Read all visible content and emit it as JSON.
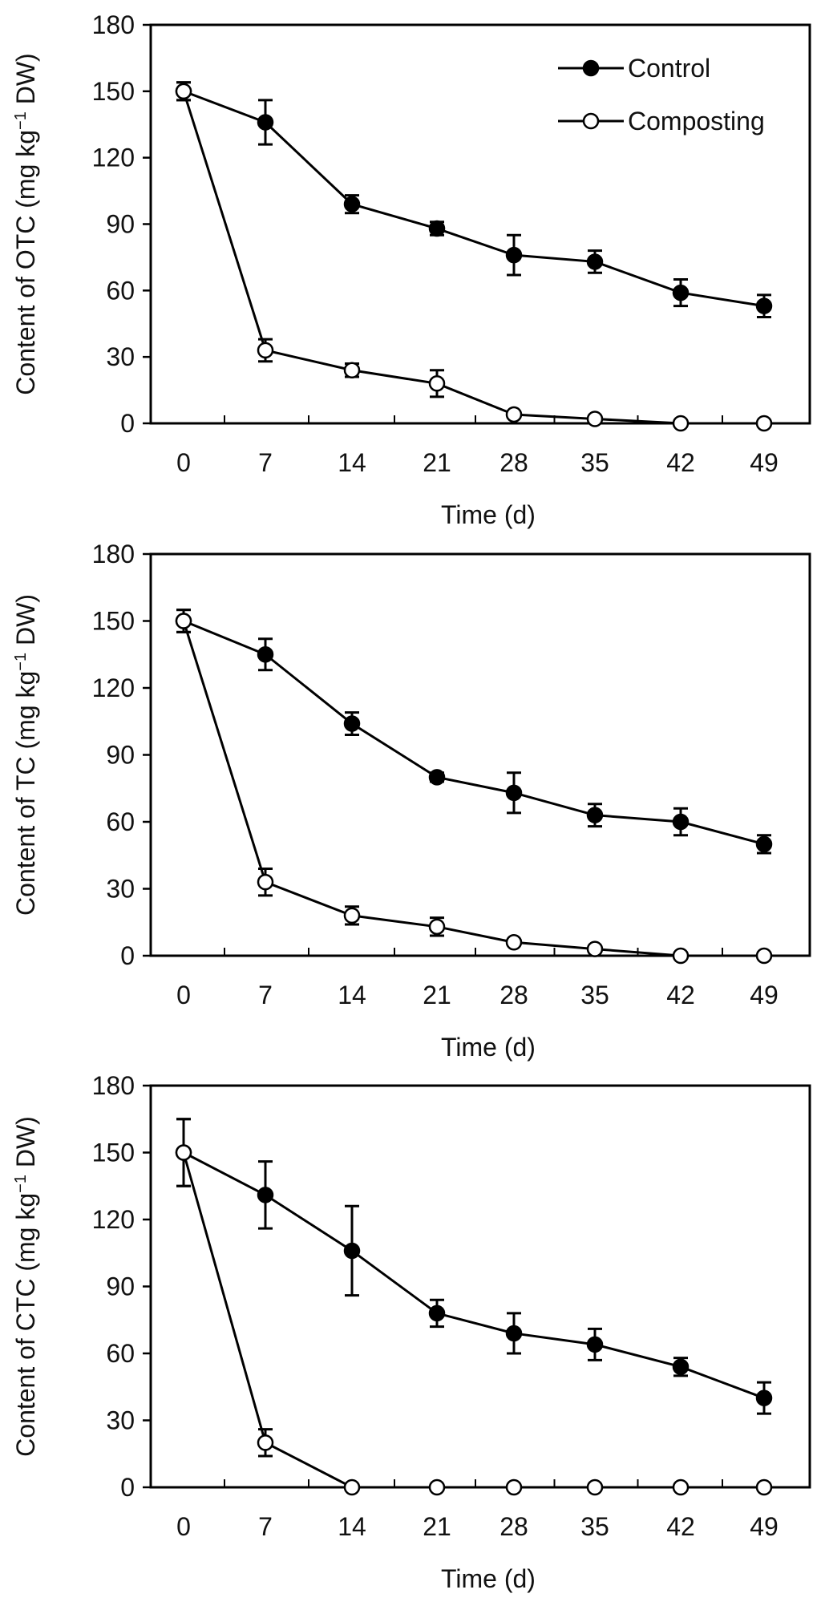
{
  "chart_data": [
    {
      "type": "line",
      "ylabel_main": "Content of OTC (mg kg",
      "ylabel_sup": "−1",
      "ylabel_tail": " DW)",
      "xlabel": "Time (d)",
      "x": [
        0,
        7,
        14,
        21,
        28,
        35,
        42,
        49
      ],
      "xtick_labels": [
        "0",
        "7",
        "14",
        "21",
        "28",
        "35",
        "42",
        "49"
      ],
      "yticks": [
        0,
        30,
        60,
        90,
        120,
        150,
        180
      ],
      "ytick_labels": [
        "0",
        "30",
        "60",
        "90",
        "120",
        "150",
        "180"
      ],
      "ylim": [
        0,
        180
      ],
      "legend": true,
      "legend_position": "top-right",
      "series": [
        {
          "name": "Control",
          "marker": "filled-circle",
          "values": [
            150,
            136,
            99,
            88,
            76,
            73,
            59,
            53
          ],
          "errors": [
            4,
            10,
            4,
            3,
            9,
            5,
            6,
            5
          ]
        },
        {
          "name": "Composting",
          "marker": "open-circle",
          "values": [
            150,
            33,
            24,
            18,
            4,
            2,
            0,
            0
          ],
          "errors": [
            4,
            5,
            3,
            6,
            0,
            0,
            0,
            0
          ]
        }
      ]
    },
    {
      "type": "line",
      "ylabel_main": "Content of TC (mg kg",
      "ylabel_sup": "−1",
      "ylabel_tail": " DW)",
      "xlabel": "Time (d)",
      "x": [
        0,
        7,
        14,
        21,
        28,
        35,
        42,
        49
      ],
      "xtick_labels": [
        "0",
        "7",
        "14",
        "21",
        "28",
        "35",
        "42",
        "49"
      ],
      "yticks": [
        0,
        30,
        60,
        90,
        120,
        150,
        180
      ],
      "ytick_labels": [
        "0",
        "30",
        "60",
        "90",
        "120",
        "150",
        "180"
      ],
      "ylim": [
        0,
        180
      ],
      "legend": false,
      "series": [
        {
          "values": [
            150,
            135,
            104,
            80,
            73,
            63,
            60,
            50
          ],
          "errors": [
            5,
            7,
            5,
            2,
            9,
            5,
            6,
            4
          ]
        },
        {
          "values": [
            150,
            33,
            18,
            13,
            6,
            3,
            0,
            0
          ],
          "errors": [
            5,
            6,
            4,
            4,
            0,
            0,
            0,
            0
          ]
        }
      ]
    },
    {
      "type": "line",
      "ylabel_main": "Content of CTC (mg kg",
      "ylabel_sup": "−1",
      "ylabel_tail": " DW)",
      "xlabel": "Time (d)",
      "x": [
        0,
        7,
        14,
        21,
        28,
        35,
        42,
        49
      ],
      "xtick_labels": [
        "0",
        "7",
        "14",
        "21",
        "28",
        "35",
        "42",
        "49"
      ],
      "yticks": [
        0,
        30,
        60,
        90,
        120,
        150,
        180
      ],
      "ytick_labels": [
        "0",
        "30",
        "60",
        "90",
        "120",
        "150",
        "180"
      ],
      "ylim": [
        0,
        180
      ],
      "legend": false,
      "series": [
        {
          "values": [
            150,
            131,
            106,
            78,
            69,
            64,
            54,
            40
          ],
          "errors": [
            15,
            15,
            20,
            6,
            9,
            7,
            4,
            7
          ]
        },
        {
          "values": [
            150,
            20,
            0,
            0,
            0,
            0,
            0,
            0
          ],
          "errors": [
            15,
            6,
            0,
            0,
            0,
            0,
            0,
            0
          ]
        }
      ]
    }
  ]
}
